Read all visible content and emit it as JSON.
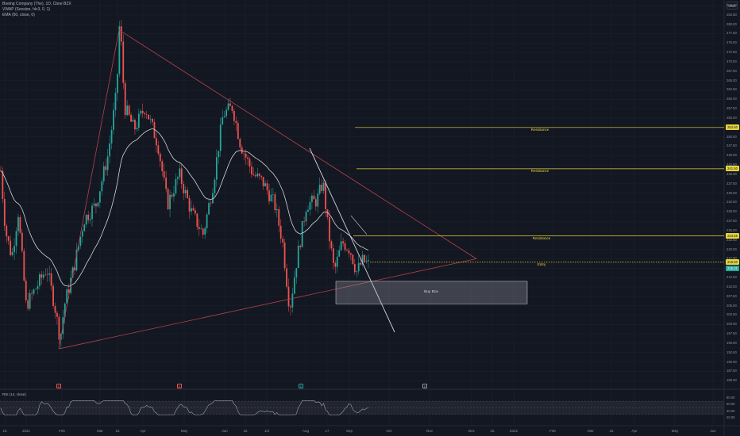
{
  "legend": {
    "symbol": "Boeing Company (The), 1D, Cboe BZX",
    "vwap": "VWAP (Session, hlc3, 0, 1)",
    "ema": "EMA (50, close, 0)"
  },
  "currency": "USD",
  "price_axis": {
    "ticks": [
      "285.00",
      "282.50",
      "280.00",
      "277.50",
      "275.00",
      "272.50",
      "270.00",
      "267.50",
      "265.00",
      "262.50",
      "260.00",
      "257.50",
      "255.00",
      "252.50",
      "250.00",
      "247.50",
      "245.00",
      "242.50",
      "240.00",
      "237.50",
      "235.00",
      "232.50",
      "230.00",
      "227.50",
      "225.00",
      "222.50",
      "220.00",
      "217.50",
      "215.00",
      "212.50",
      "210.00",
      "207.50",
      "205.00",
      "202.50",
      "200.00",
      "197.50",
      "195.00",
      "192.50",
      "190.00",
      "187.50",
      "185.00"
    ],
    "badges": [
      {
        "text": "252.50",
        "value": 252.5,
        "bg": "#e6d43a",
        "fg": "#131722"
      },
      {
        "text": "241.50",
        "value": 241.5,
        "bg": "#e6d43a",
        "fg": "#131722"
      },
      {
        "text": "223.65",
        "value": 223.65,
        "bg": "#e6d43a",
        "fg": "#131722"
      },
      {
        "text": "216.60",
        "value": 216.6,
        "bg": "#e6d43a",
        "fg": "#131722"
      },
      {
        "text": "215.01",
        "value": 215.01,
        "bg": "#26a69a",
        "fg": "#ffffff"
      }
    ]
  },
  "rsi": {
    "label": "RSI (14, close)",
    "ticks": [
      "80.00",
      "60.00",
      "40.00",
      "20.00"
    ]
  },
  "time_axis": [
    "16",
    "2021",
    "Feb",
    "Mar",
    "15",
    "Apr",
    "May",
    "Jun",
    "15",
    "Jul",
    "Aug",
    "17",
    "Sep",
    "Oct",
    "Nov",
    "Dec",
    "15",
    "2022",
    "Feb",
    "Mar",
    "15",
    "Apr",
    "May",
    "Jun"
  ],
  "events": [
    {
      "text": "E",
      "color": "#ef5350"
    },
    {
      "text": "E",
      "color": "#ef5350"
    },
    {
      "text": "E",
      "color": "#26a69a"
    },
    {
      "text": "E",
      "color": "#8e929c"
    }
  ],
  "levels": [
    {
      "label": "Resistance",
      "price": 252.5
    },
    {
      "label": "Resistance",
      "price": 241.5
    },
    {
      "label": "Resistance",
      "price": 223.65
    },
    {
      "label": "Entry",
      "price": 216.6
    }
  ],
  "buy_box": {
    "label": "Buy Box",
    "top": 211.5,
    "bottom": 205.5
  },
  "colors": {
    "up": "#26a69a",
    "down": "#ef5350",
    "ema": "#d1d4dc",
    "trendline": "#b2434a",
    "level": "#e6d43a",
    "downtrend": "#d1d4dc",
    "background": "#131722",
    "grid": "#1e222d"
  }
}
